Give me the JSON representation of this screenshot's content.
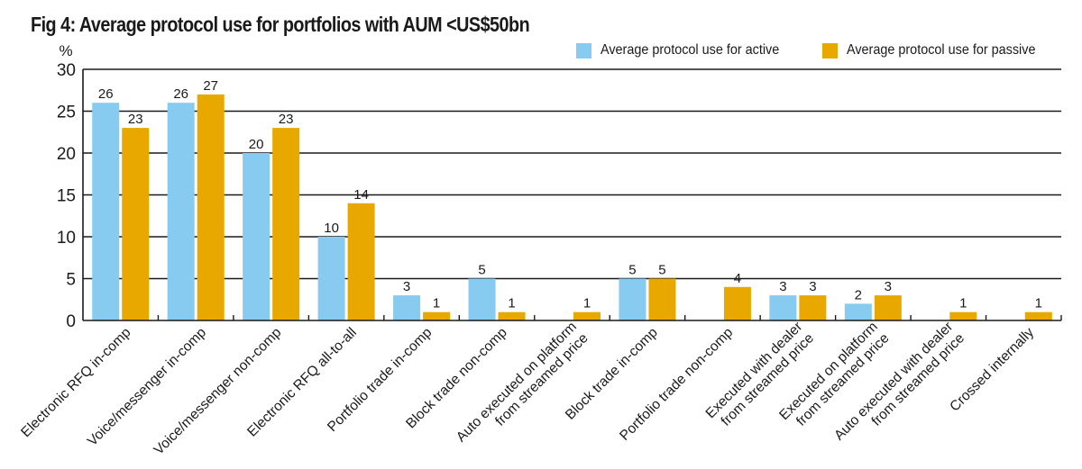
{
  "chart_data": {
    "type": "bar",
    "title": "Fig 4: Average protocol use for portfolios with AUM <US$50bn",
    "ylabel": "%",
    "xlabel": "",
    "ylim": [
      0,
      30
    ],
    "yticks": [
      0,
      5,
      10,
      15,
      20,
      25,
      30
    ],
    "grid": true,
    "legend_position": "top-right",
    "categories": [
      [
        "Electronic RFQ in-comp"
      ],
      [
        "Voice/messenger in-comp"
      ],
      [
        "Voice/messenger non-comp"
      ],
      [
        "Electronic RFQ all-to-all"
      ],
      [
        "Portfolio trade in-comp"
      ],
      [
        "Block trade non-comp"
      ],
      [
        "Auto executed on platform",
        "from streamed price"
      ],
      [
        "Block trade in-comp"
      ],
      [
        "Portfolio trade non-comp"
      ],
      [
        "Executed with dealer",
        "from streamed price"
      ],
      [
        "Executed on platform",
        "from streamed price"
      ],
      [
        "Auto executed with dealer",
        "from streamed price"
      ],
      [
        "Crossed internally"
      ]
    ],
    "series": [
      {
        "name": "Average protocol use for active",
        "color": "#87CBF1",
        "values": [
          26,
          26,
          20,
          10,
          3,
          5,
          null,
          5,
          null,
          3,
          2,
          null,
          null
        ]
      },
      {
        "name": "Average protocol use for passive",
        "color": "#E8A800",
        "values": [
          23,
          27,
          23,
          14,
          1,
          1,
          1,
          5,
          4,
          3,
          3,
          1,
          1
        ]
      }
    ]
  }
}
